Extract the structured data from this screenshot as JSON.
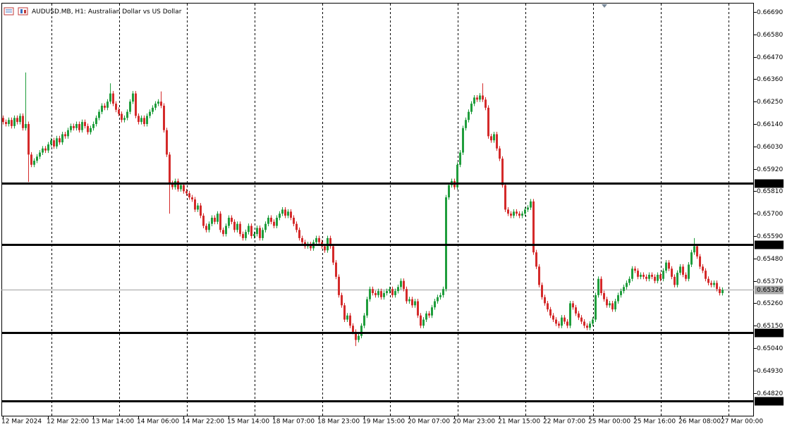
{
  "chart_data": {
    "type": "candlestick",
    "title": "AUDUSD.MB, H1:  Australian Dollar vs US Dollar",
    "up_color": "#1f9d3c",
    "down_color": "#d42a2a",
    "ylim": [
      0.64708,
      0.66735
    ],
    "yticks": [
      {
        "value": 0.6669,
        "label": "0.66690"
      },
      {
        "value": 0.6658,
        "label": "0.66580"
      },
      {
        "value": 0.6647,
        "label": "0.66470"
      },
      {
        "value": 0.6636,
        "label": "0.66360"
      },
      {
        "value": 0.6625,
        "label": "0.66250"
      },
      {
        "value": 0.6614,
        "label": "0.66140"
      },
      {
        "value": 0.6603,
        "label": "0.66030"
      },
      {
        "value": 0.6592,
        "label": "0.65920"
      },
      {
        "value": 0.6581,
        "label": "0.65810"
      },
      {
        "value": 0.657,
        "label": "0.65700"
      },
      {
        "value": 0.6559,
        "label": "0.65590"
      },
      {
        "value": 0.6548,
        "label": "0.65480"
      },
      {
        "value": 0.6537,
        "label": "0.65370"
      },
      {
        "value": 0.6526,
        "label": "0.65260"
      },
      {
        "value": 0.6515,
        "label": "0.65150"
      },
      {
        "value": 0.6504,
        "label": "0.65040"
      },
      {
        "value": 0.6493,
        "label": "0.64930"
      },
      {
        "value": 0.6482,
        "label": "0.64820"
      }
    ],
    "levels": [
      {
        "value": 0.6585,
        "label": "0.65850"
      },
      {
        "value": 0.6555,
        "label": "0.65550"
      },
      {
        "value": 0.65115,
        "label": "0.65115"
      },
      {
        "value": 0.64779,
        "label": "0.64779"
      }
    ],
    "current_price": {
      "value": 0.65326,
      "label": "0.65326"
    },
    "categories": [
      "12 Mar 2024",
      null,
      null,
      null,
      null,
      null,
      null,
      null,
      null,
      null,
      null,
      null,
      null,
      null,
      null,
      null,
      "12 Mar 22:00",
      null,
      null,
      null,
      null,
      null,
      null,
      null,
      null,
      null,
      null,
      null,
      null,
      null,
      null,
      null,
      "13 Mar 14:00",
      null,
      null,
      null,
      null,
      null,
      null,
      null,
      null,
      null,
      null,
      null,
      null,
      null,
      null,
      null,
      "14 Mar 06:00",
      null,
      null,
      null,
      null,
      null,
      null,
      null,
      null,
      null,
      null,
      null,
      null,
      null,
      null,
      null,
      "14 Mar 22:00",
      null,
      null,
      null,
      null,
      null,
      null,
      null,
      null,
      null,
      null,
      null,
      null,
      null,
      null,
      null,
      "15 Mar 14:00",
      null,
      null,
      null,
      null,
      null,
      null,
      null,
      null,
      null,
      null,
      null,
      null,
      null,
      null,
      null,
      "18 Mar 07:00",
      null,
      null,
      null,
      null,
      null,
      null,
      null,
      null,
      null,
      null,
      null,
      null,
      null,
      null,
      null,
      "18 Mar 23:00",
      null,
      null,
      null,
      null,
      null,
      null,
      null,
      null,
      null,
      null,
      null,
      null,
      null,
      null,
      null,
      "19 Mar 15:00",
      null,
      null,
      null,
      null,
      null,
      null,
      null,
      null,
      null,
      null,
      null,
      null,
      null,
      null,
      null,
      "20 Mar 07:00",
      null,
      null,
      null,
      null,
      null,
      null,
      null,
      null,
      null,
      null,
      null,
      null,
      null,
      null,
      null,
      "20 Mar 23:00",
      null,
      null,
      null,
      null,
      null,
      null,
      null,
      null,
      null,
      null,
      null,
      null,
      null,
      null,
      null,
      "21 Mar 15:00",
      null,
      null,
      null,
      null,
      null,
      null,
      null,
      null,
      null,
      null,
      null,
      null,
      null,
      null,
      null,
      "22 Mar 07:00",
      null,
      null,
      null,
      null,
      null,
      null,
      null,
      null,
      null,
      null,
      null,
      null,
      null,
      null,
      null,
      "25 Mar 00:00",
      null,
      null,
      null,
      null,
      null,
      null,
      null,
      null,
      null,
      null,
      null,
      null,
      null,
      null,
      null,
      "25 Mar 16:00",
      null,
      null,
      null,
      null,
      null,
      null,
      null,
      null,
      null,
      null,
      null,
      null,
      null,
      null,
      null,
      "26 Mar 08:00",
      null,
      null,
      null,
      null,
      null,
      null,
      null,
      null,
      null,
      null,
      null,
      null,
      null,
      null,
      "27 Mar 00:00"
    ],
    "open": [
      0.6617,
      0.6615,
      0.6614,
      0.6616,
      0.6613,
      0.6617,
      0.6615,
      0.6618,
      0.6612,
      0.6614,
      0.6599,
      0.6594,
      0.6596,
      0.6598,
      0.66,
      0.6602,
      0.6601,
      0.6604,
      0.6606,
      0.6603,
      0.6607,
      0.6605,
      0.6609,
      0.6608,
      0.6611,
      0.6613,
      0.6612,
      0.6614,
      0.6611,
      0.6615,
      0.6613,
      0.661,
      0.6612,
      0.6614,
      0.6617,
      0.662,
      0.6623,
      0.6622,
      0.6625,
      0.6629,
      0.6624,
      0.6621,
      0.6619,
      0.6616,
      0.6617,
      0.662,
      0.6625,
      0.6629,
      0.6618,
      0.6615,
      0.6617,
      0.6614,
      0.6618,
      0.662,
      0.6622,
      0.6624,
      0.6625,
      0.6623,
      0.6611,
      0.6599,
      0.6585,
      0.6583,
      0.6586,
      0.6582,
      0.6584,
      0.6581,
      0.658,
      0.6578,
      0.6577,
      0.6572,
      0.6574,
      0.6569,
      0.6564,
      0.6562,
      0.6565,
      0.6568,
      0.6566,
      0.657,
      0.6562,
      0.656,
      0.6564,
      0.6568,
      0.6566,
      0.6562,
      0.6565,
      0.656,
      0.6558,
      0.6561,
      0.6564,
      0.6559,
      0.656,
      0.6563,
      0.6558,
      0.6562,
      0.6565,
      0.6568,
      0.6566,
      0.6564,
      0.6568,
      0.657,
      0.6572,
      0.6569,
      0.6571,
      0.6568,
      0.6565,
      0.6562,
      0.6558,
      0.6556,
      0.6554,
      0.6555,
      0.6553,
      0.6556,
      0.6558,
      0.6556,
      0.6554,
      0.6552,
      0.6558,
      0.6554,
      0.6546,
      0.6539,
      0.653,
      0.6525,
      0.6518,
      0.652,
      0.6515,
      0.6512,
      0.6508,
      0.651,
      0.6515,
      0.652,
      0.6528,
      0.6533,
      0.6531,
      0.653,
      0.6532,
      0.6529,
      0.6531,
      0.6532,
      0.6533,
      0.653,
      0.6532,
      0.6534,
      0.6537,
      0.6533,
      0.6527,
      0.6528,
      0.6525,
      0.6527,
      0.652,
      0.6515,
      0.6518,
      0.6521,
      0.652,
      0.6524,
      0.6527,
      0.6529,
      0.653,
      0.6533,
      0.6578,
      0.6584,
      0.6586,
      0.6583,
      0.6594,
      0.66,
      0.6612,
      0.6616,
      0.662,
      0.6624,
      0.6627,
      0.6626,
      0.6628,
      0.6626,
      0.6622,
      0.6608,
      0.6606,
      0.6609,
      0.6602,
      0.6597,
      0.6584,
      0.6572,
      0.657,
      0.6569,
      0.6571,
      0.657,
      0.6569,
      0.657,
      0.6572,
      0.6573,
      0.6576,
      0.6551,
      0.6544,
      0.6535,
      0.6529,
      0.6526,
      0.6523,
      0.652,
      0.6518,
      0.6516,
      0.6515,
      0.6519,
      0.6517,
      0.6515,
      0.6526,
      0.6524,
      0.6521,
      0.6519,
      0.6517,
      0.6515,
      0.6514,
      0.6516,
      0.6518,
      0.653,
      0.6538,
      0.6531,
      0.6528,
      0.6525,
      0.6526,
      0.6523,
      0.6527,
      0.653,
      0.6532,
      0.6534,
      0.6536,
      0.6538,
      0.6543,
      0.6542,
      0.6539,
      0.654,
      0.6539,
      0.6538,
      0.654,
      0.6539,
      0.6537,
      0.654,
      0.6538,
      0.6542,
      0.6546,
      0.6543,
      0.6539,
      0.6535,
      0.6541,
      0.6544,
      0.654,
      0.6538,
      0.6545,
      0.6551,
      0.6554,
      0.6549,
      0.6544,
      0.6542,
      0.6538,
      0.6536,
      0.6535,
      0.6536,
      0.6533,
      0.6531
    ],
    "high": [
      0.66182,
      0.66162,
      0.66172,
      0.66172,
      0.66182,
      0.66182,
      0.66192,
      0.66192,
      0.66393,
      0.66152,
      0.66002,
      0.65972,
      0.65992,
      0.66012,
      0.66032,
      0.66032,
      0.66052,
      0.66072,
      0.66072,
      0.66082,
      0.66082,
      0.66102,
      0.66102,
      0.66122,
      0.66142,
      0.66142,
      0.66152,
      0.66152,
      0.66162,
      0.66162,
      0.66142,
      0.66132,
      0.66152,
      0.66182,
      0.66212,
      0.66242,
      0.66242,
      0.66262,
      0.6634,
      0.66302,
      0.66252,
      0.66222,
      0.66202,
      0.66182,
      0.66212,
      0.66262,
      0.66302,
      0.66302,
      0.66192,
      0.66182,
      0.66182,
      0.66192,
      0.66212,
      0.66232,
      0.66252,
      0.66262,
      0.663,
      0.66242,
      0.66122,
      0.66002,
      0.65862,
      0.65872,
      0.65872,
      0.65852,
      0.65852,
      0.65822,
      0.65812,
      0.65792,
      0.65782,
      0.65752,
      0.65752,
      0.65702,
      0.65652,
      0.65662,
      0.65692,
      0.65692,
      0.65712,
      0.65712,
      0.65632,
      0.65652,
      0.65692,
      0.65692,
      0.65672,
      0.65662,
      0.65662,
      0.65612,
      0.65622,
      0.65652,
      0.65652,
      0.65612,
      0.65642,
      0.65642,
      0.65632,
      0.65662,
      0.65692,
      0.65692,
      0.65672,
      0.65692,
      0.65712,
      0.65732,
      0.65732,
      0.65722,
      0.65722,
      0.65692,
      0.65662,
      0.65632,
      0.65592,
      0.65572,
      0.65562,
      0.65562,
      0.65572,
      0.65592,
      0.65592,
      0.65572,
      0.65552,
      0.65592,
      0.65592,
      0.65552,
      0.65472,
      0.65402,
      0.65312,
      0.65262,
      0.65212,
      0.65212,
      0.65162,
      0.65132,
      0.65112,
      0.65162,
      0.65212,
      0.65292,
      0.65342,
      0.65342,
      0.65322,
      0.65332,
      0.65332,
      0.65322,
      0.65332,
      0.65342,
      0.65342,
      0.65332,
      0.65352,
      0.65382,
      0.65382,
      0.65342,
      0.65292,
      0.65292,
      0.65282,
      0.65282,
      0.65212,
      0.65192,
      0.65222,
      0.65222,
      0.65252,
      0.65282,
      0.65302,
      0.65312,
      0.65342,
      0.65792,
      0.65852,
      0.65872,
      0.65872,
      0.65952,
      0.66012,
      0.66132,
      0.66172,
      0.66212,
      0.66252,
      0.66282,
      0.66282,
      0.66292,
      0.6634,
      0.66272,
      0.66232,
      0.66092,
      0.66102,
      0.66102,
      0.66032,
      0.65982,
      0.65852,
      0.65732,
      0.65712,
      0.65722,
      0.65722,
      0.65712,
      0.65712,
      0.65732,
      0.65742,
      0.65772,
      0.65772,
      0.65522,
      0.65452,
      0.65362,
      0.65302,
      0.65272,
      0.65242,
      0.65212,
      0.65192,
      0.65172,
      0.65202,
      0.65202,
      0.65182,
      0.65272,
      0.65272,
      0.65252,
      0.65222,
      0.65202,
      0.65182,
      0.65162,
      0.65172,
      0.65192,
      0.65312,
      0.65392,
      0.65392,
      0.65322,
      0.65292,
      0.65272,
      0.65272,
      0.65282,
      0.65312,
      0.65332,
      0.65352,
      0.65372,
      0.65392,
      0.65442,
      0.65442,
      0.65432,
      0.65412,
      0.65412,
      0.65402,
      0.65412,
      0.65412,
      0.65402,
      0.65412,
      0.65412,
      0.65432,
      0.65472,
      0.65472,
      0.65442,
      0.65402,
      0.65422,
      0.65452,
      0.65452,
      0.65412,
      0.65462,
      0.65522,
      0.6558,
      0.65552,
      0.65502,
      0.65452,
      0.65432,
      0.65392,
      0.65372,
      0.65372,
      0.65372,
      0.65342,
      0.65338
    ],
    "low": [
      0.66138,
      0.66128,
      0.66128,
      0.66118,
      0.66118,
      0.66138,
      0.66138,
      0.66108,
      0.66108,
      0.65856,
      0.65928,
      0.65928,
      0.65948,
      0.65968,
      0.65988,
      0.65998,
      0.65998,
      0.66028,
      0.66018,
      0.66018,
      0.66038,
      0.66038,
      0.66068,
      0.66068,
      0.66098,
      0.66108,
      0.66108,
      0.66098,
      0.66098,
      0.66118,
      0.66088,
      0.66088,
      0.66108,
      0.66128,
      0.66158,
      0.66188,
      0.66208,
      0.66208,
      0.66238,
      0.66228,
      0.66198,
      0.66178,
      0.66148,
      0.66148,
      0.66158,
      0.66188,
      0.66238,
      0.66168,
      0.66138,
      0.66138,
      0.66128,
      0.66128,
      0.66168,
      0.66188,
      0.66208,
      0.66228,
      0.66218,
      0.66098,
      0.65978,
      0.657,
      0.65818,
      0.65818,
      0.65808,
      0.65808,
      0.65798,
      0.65788,
      0.65768,
      0.65758,
      0.65708,
      0.65708,
      0.65678,
      0.65628,
      0.65608,
      0.65608,
      0.65638,
      0.65648,
      0.65648,
      0.65608,
      0.65588,
      0.65588,
      0.65628,
      0.65648,
      0.65608,
      0.65608,
      0.65588,
      0.65568,
      0.65568,
      0.65598,
      0.65578,
      0.65578,
      0.65588,
      0.65568,
      0.65568,
      0.65608,
      0.65638,
      0.65648,
      0.65628,
      0.65628,
      0.65668,
      0.65688,
      0.65678,
      0.65678,
      0.65668,
      0.65638,
      0.65608,
      0.65568,
      0.65548,
      0.65528,
      0.65528,
      0.65518,
      0.65518,
      0.65548,
      0.65548,
      0.65528,
      0.65508,
      0.65508,
      0.65528,
      0.65448,
      0.65378,
      0.65288,
      0.65238,
      0.65168,
      0.65168,
      0.65138,
      0.65108,
      0.6505,
      0.65068,
      0.65088,
      0.65138,
      0.65188,
      0.65268,
      0.65298,
      0.65288,
      0.65288,
      0.65278,
      0.65278,
      0.65298,
      0.65308,
      0.65288,
      0.65288,
      0.65308,
      0.65328,
      0.65318,
      0.65258,
      0.65258,
      0.65238,
      0.65238,
      0.65188,
      0.65138,
      0.65138,
      0.65168,
      0.65188,
      0.65188,
      0.65228,
      0.65258,
      0.65278,
      0.65288,
      0.65318,
      0.65768,
      0.65828,
      0.65818,
      0.65818,
      0.65928,
      0.65988,
      0.66108,
      0.66148,
      0.66188,
      0.66228,
      0.66248,
      0.66248,
      0.66248,
      0.66208,
      0.66068,
      0.66048,
      0.66048,
      0.66008,
      0.65958,
      0.65828,
      0.65708,
      0.65688,
      0.65678,
      0.65678,
      0.65688,
      0.65678,
      0.65678,
      0.65688,
      0.65708,
      0.65718,
      0.65498,
      0.65428,
      0.65338,
      0.65278,
      0.65248,
      0.65218,
      0.65188,
      0.65168,
      0.65148,
      0.65138,
      0.65138,
      0.65158,
      0.65138,
      0.65138,
      0.65228,
      0.65198,
      0.65178,
      0.65158,
      0.65138,
      0.65128,
      0.65128,
      0.65148,
      0.65168,
      0.65288,
      0.65298,
      0.65268,
      0.65238,
      0.65238,
      0.65218,
      0.65218,
      0.65258,
      0.65288,
      0.65308,
      0.65328,
      0.65348,
      0.65368,
      0.65408,
      0.65378,
      0.65378,
      0.65378,
      0.65368,
      0.65368,
      0.65378,
      0.65358,
      0.65358,
      0.65368,
      0.65368,
      0.65408,
      0.65418,
      0.65378,
      0.65338,
      0.65338,
      0.65398,
      0.65388,
      0.65368,
      0.65368,
      0.65438,
      0.65498,
      0.65478,
      0.65428,
      0.65408,
      0.65368,
      0.65348,
      0.65338,
      0.65338,
      0.65318,
      0.65298,
      0.65298
    ],
    "close": [
      0.6615,
      0.6614,
      0.6616,
      0.6613,
      0.6617,
      0.6615,
      0.6618,
      0.6612,
      0.6614,
      0.6599,
      0.6594,
      0.6596,
      0.6598,
      0.66,
      0.6602,
      0.6601,
      0.6604,
      0.6606,
      0.6603,
      0.6607,
      0.6605,
      0.6609,
      0.6608,
      0.6611,
      0.6613,
      0.6612,
      0.6614,
      0.6611,
      0.6615,
      0.6613,
      0.661,
      0.6612,
      0.6614,
      0.6617,
      0.662,
      0.6623,
      0.6622,
      0.6625,
      0.6629,
      0.6624,
      0.6621,
      0.6619,
      0.6616,
      0.6617,
      0.662,
      0.6625,
      0.6629,
      0.6618,
      0.6615,
      0.6617,
      0.6614,
      0.6618,
      0.662,
      0.6622,
      0.6624,
      0.6625,
      0.6623,
      0.6611,
      0.6599,
      0.6585,
      0.6583,
      0.6586,
      0.6582,
      0.6584,
      0.6581,
      0.658,
      0.6578,
      0.6577,
      0.6572,
      0.6574,
      0.6569,
      0.6564,
      0.6562,
      0.6565,
      0.6568,
      0.6566,
      0.657,
      0.6562,
      0.656,
      0.6564,
      0.6568,
      0.6566,
      0.6562,
      0.6565,
      0.656,
      0.6558,
      0.6561,
      0.6564,
      0.6559,
      0.656,
      0.6563,
      0.6558,
      0.6562,
      0.6565,
      0.6568,
      0.6566,
      0.6564,
      0.6568,
      0.657,
      0.6572,
      0.6569,
      0.6571,
      0.6568,
      0.6565,
      0.6562,
      0.6558,
      0.6556,
      0.6554,
      0.6555,
      0.6553,
      0.6556,
      0.6558,
      0.6556,
      0.6554,
      0.6552,
      0.6558,
      0.6554,
      0.6546,
      0.6539,
      0.653,
      0.6525,
      0.6518,
      0.652,
      0.6515,
      0.6512,
      0.6508,
      0.651,
      0.6515,
      0.652,
      0.6528,
      0.6533,
      0.6531,
      0.653,
      0.6532,
      0.6529,
      0.6531,
      0.6532,
      0.6533,
      0.653,
      0.6532,
      0.6534,
      0.6537,
      0.6533,
      0.6527,
      0.6528,
      0.6525,
      0.6527,
      0.652,
      0.6515,
      0.6518,
      0.6521,
      0.652,
      0.6524,
      0.6527,
      0.6529,
      0.653,
      0.6533,
      0.6578,
      0.6584,
      0.6586,
      0.6583,
      0.6594,
      0.66,
      0.6612,
      0.6616,
      0.662,
      0.6624,
      0.6627,
      0.6626,
      0.6628,
      0.6626,
      0.6622,
      0.6608,
      0.6606,
      0.6609,
      0.6602,
      0.6597,
      0.6584,
      0.6572,
      0.657,
      0.6569,
      0.6571,
      0.657,
      0.6569,
      0.657,
      0.6572,
      0.6573,
      0.6576,
      0.6551,
      0.6544,
      0.6535,
      0.6529,
      0.6526,
      0.6523,
      0.652,
      0.6518,
      0.6516,
      0.6515,
      0.6519,
      0.6517,
      0.6515,
      0.6526,
      0.6524,
      0.6521,
      0.6519,
      0.6517,
      0.6515,
      0.6514,
      0.6516,
      0.6518,
      0.653,
      0.6538,
      0.6531,
      0.6528,
      0.6525,
      0.6526,
      0.6523,
      0.6527,
      0.653,
      0.6532,
      0.6534,
      0.6536,
      0.6538,
      0.6543,
      0.6542,
      0.6539,
      0.654,
      0.6539,
      0.6538,
      0.654,
      0.6539,
      0.6537,
      0.654,
      0.6538,
      0.6542,
      0.6546,
      0.6543,
      0.6539,
      0.6535,
      0.6541,
      0.6544,
      0.654,
      0.6538,
      0.6545,
      0.6551,
      0.6554,
      0.6549,
      0.6544,
      0.6542,
      0.6538,
      0.6536,
      0.6535,
      0.6536,
      0.6533,
      0.6531,
      0.65326
    ]
  }
}
